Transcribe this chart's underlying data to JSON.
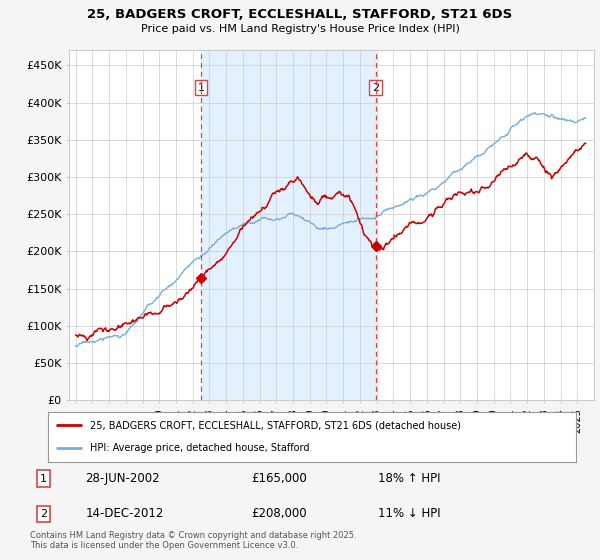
{
  "title": "25, BADGERS CROFT, ECCLESHALL, STAFFORD, ST21 6DS",
  "subtitle": "Price paid vs. HM Land Registry's House Price Index (HPI)",
  "ylim": [
    0,
    470000
  ],
  "yticks": [
    0,
    50000,
    100000,
    150000,
    200000,
    250000,
    300000,
    350000,
    400000,
    450000
  ],
  "ytick_labels": [
    "£0",
    "£50K",
    "£100K",
    "£150K",
    "£200K",
    "£250K",
    "£300K",
    "£350K",
    "£400K",
    "£450K"
  ],
  "sale1": {
    "date": "28-JUN-2002",
    "price": 165000,
    "pct": "18%",
    "dir": "↑"
  },
  "sale2": {
    "date": "14-DEC-2012",
    "price": 208000,
    "pct": "11%",
    "dir": "↓"
  },
  "sale1_x": 2002.49,
  "sale2_x": 2012.95,
  "legend_label1": "25, BADGERS CROFT, ECCLESHALL, STAFFORD, ST21 6DS (detached house)",
  "legend_label2": "HPI: Average price, detached house, Stafford",
  "footer": "Contains HM Land Registry data © Crown copyright and database right 2025.\nThis data is licensed under the Open Government Licence v3.0.",
  "color_red": "#cc0000",
  "color_blue": "#7aaddc",
  "color_dashed": "#dd4444",
  "shade_color": "#ddeeff",
  "background_color": "#f5f5f5",
  "plot_bg": "#ffffff",
  "grid_color": "#cccccc"
}
